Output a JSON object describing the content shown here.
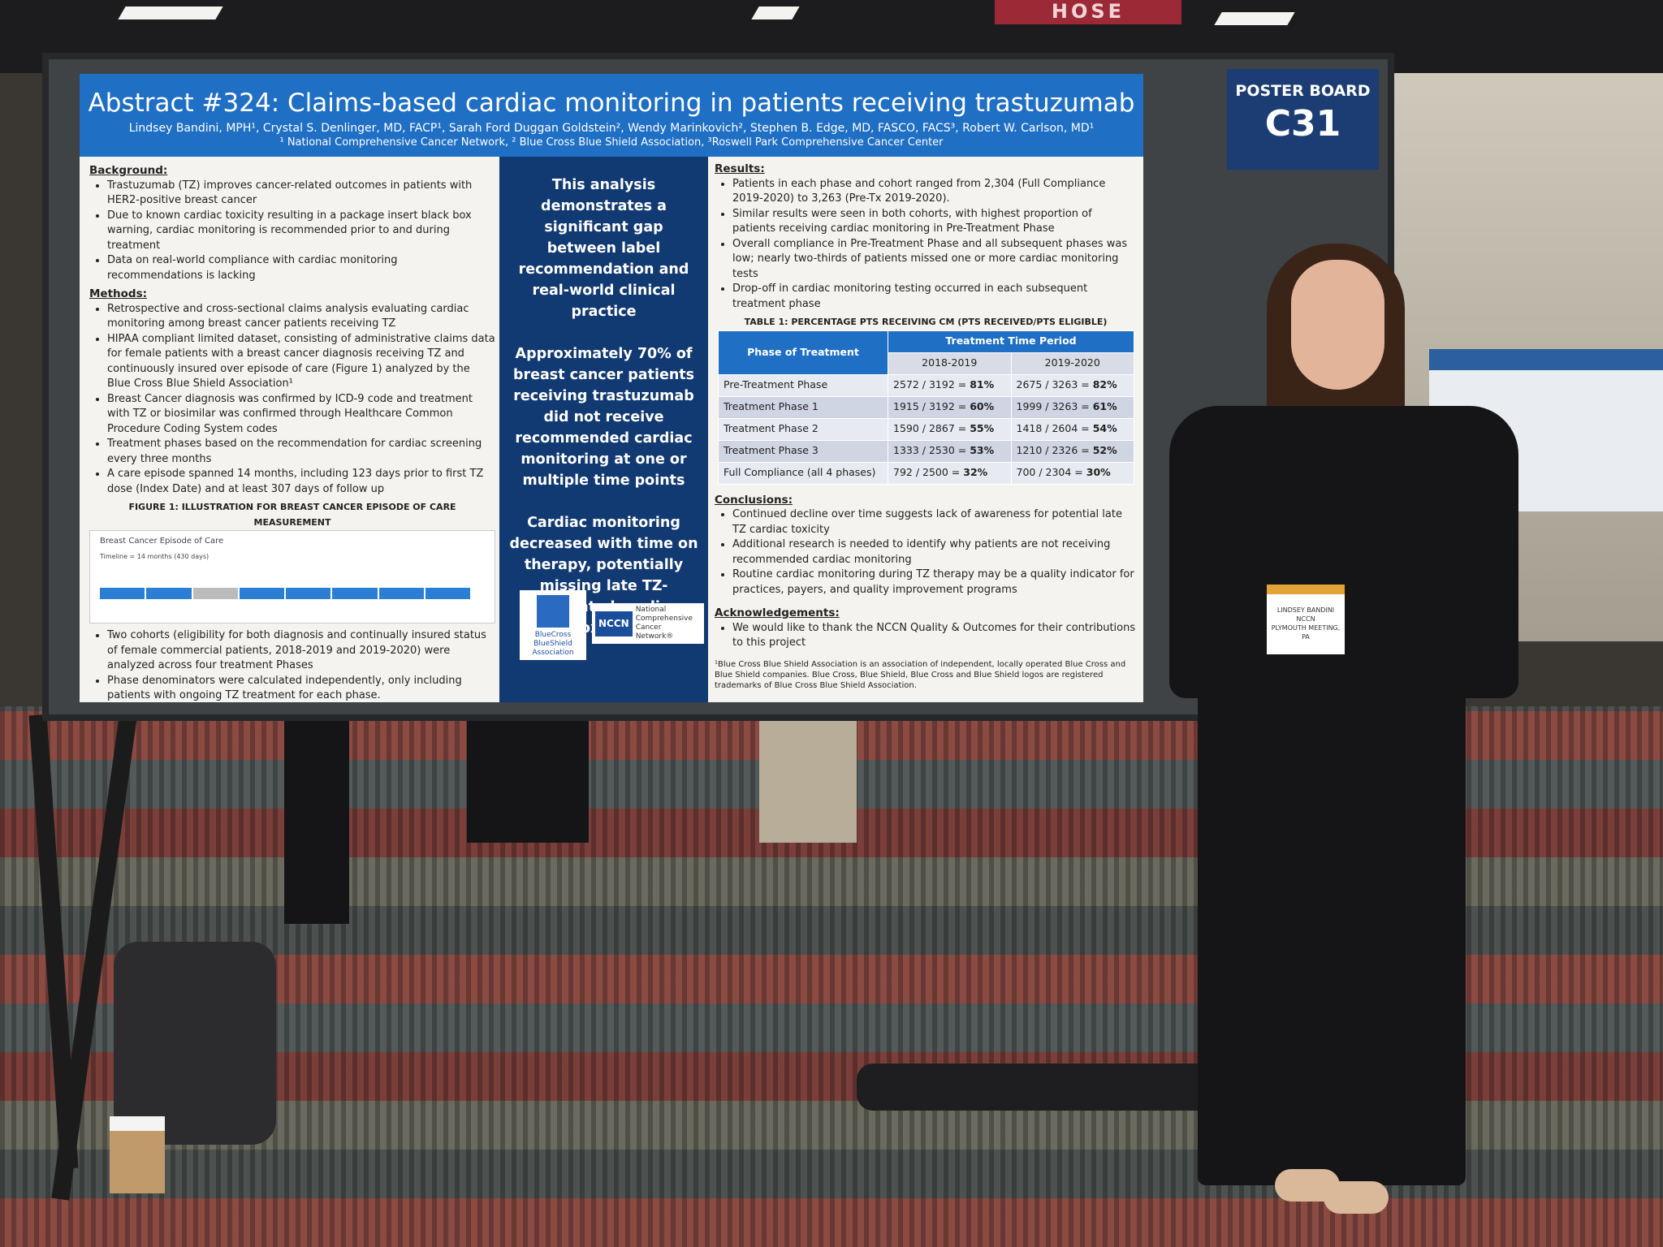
{
  "sign": "HOSE",
  "poster": {
    "title": "Abstract #324: Claims-based cardiac monitoring in patients receiving trastuzumab",
    "authors": "Lindsey Bandini, MPH¹, Crystal S. Denlinger, MD, FACP¹, Sarah Ford Duggan Goldstein², Wendy Marinkovich², Stephen B. Edge, MD, FASCO, FACS³, Robert W. Carlson, MD¹",
    "affiliations": "¹ National Comprehensive Cancer Network, ² Blue Cross Blue Shield Association, ³Roswell Park Comprehensive Cancer Center",
    "background": {
      "heading": "Background:",
      "bullets": [
        "Trastuzumab (TZ) improves cancer-related outcomes in patients with HER2-positive breast cancer",
        "Due to known cardiac toxicity resulting in a package insert black box warning, cardiac monitoring is recommended prior to and during treatment",
        "Data on real-world compliance with cardiac monitoring recommendations is lacking"
      ]
    },
    "methods": {
      "heading": "Methods:",
      "bullets": [
        "Retrospective and cross-sectional claims analysis evaluating cardiac monitoring among breast cancer patients receiving TZ",
        "HIPAA compliant limited dataset, consisting of administrative claims data for female patients with a breast cancer diagnosis receiving TZ and continuously insured over episode of care (Figure 1) analyzed by the Blue Cross Blue Shield Association¹",
        "Breast Cancer diagnosis was confirmed by ICD-9 code and treatment with TZ or biosimilar was confirmed through Healthcare Common Procedure Coding System codes",
        "Treatment phases based on the recommendation for cardiac screening every three months",
        "A care episode spanned 14 months, including 123 days prior to first TZ dose (Index Date) and at least 307 days of follow up"
      ],
      "more_bullets": [
        "Two cohorts (eligibility for both diagnosis and continually insured status of female commercial patients, 2018-2019 and 2019-2020) were analyzed across four treatment Phases",
        "Phase denominators were calculated independently, only including patients with ongoing TZ treatment for each phase."
      ]
    },
    "figure": {
      "caption": "FIGURE 1: ILLUSTRATION FOR BREAST CANCER EPISODE OF CARE MEASUREMENT",
      "title": "Breast Cancer Episode of Care",
      "subtitle": "Timeline = 14 months (430 days)"
    },
    "key_messages": [
      "This analysis demonstrates a significant gap between label recommendation  and real-world clinical practice",
      "Approximately 70% of breast cancer patients receiving trastuzumab did not receive recommended cardiac monitoring at one or multiple time points",
      "Cardiac monitoring decreased with time on therapy, potentially missing late TZ-associated cardiac toxicity"
    ],
    "logos": {
      "bcbs": "BlueCross BlueShield Association",
      "nccn": "NCCN",
      "nccn_name": "National Comprehensive Cancer Network®"
    },
    "results": {
      "heading": "Results:",
      "bullets": [
        "Patients in each phase and cohort ranged from 2,304 (Full Compliance 2019-2020) to 3,263 (Pre-Tx 2019-2020).",
        "Similar results were seen in both cohorts, with highest proportion of patients receiving cardiac monitoring in Pre-Treatment Phase",
        "Overall compliance in Pre-Treatment Phase and all subsequent phases was low; nearly two-thirds of patients missed one or more cardiac monitoring tests",
        "Drop-off in cardiac monitoring testing occurred in each subsequent treatment phase"
      ]
    },
    "table": {
      "caption": "TABLE 1: PERCENTAGE PTS RECEIVING CM (PTS RECEIVED/PTS ELIGIBLE)",
      "phase_header": "Phase of Treatment",
      "period_header": "Treatment Time Period",
      "periods": [
        "2018-2019",
        "2019-2020"
      ],
      "rows": [
        [
          "Pre-Treatment Phase",
          [
            "2572 / 3192 = ",
            "81%"
          ],
          [
            "2675 / 3263 = ",
            "82%"
          ]
        ],
        [
          "Treatment Phase 1",
          [
            "1915 / 3192 = ",
            "60%"
          ],
          [
            "1999 / 3263 = ",
            "61%"
          ]
        ],
        [
          "Treatment Phase 2",
          [
            "1590 / 2867 = ",
            "55%"
          ],
          [
            "1418 / 2604 = ",
            "54%"
          ]
        ],
        [
          "Treatment Phase 3",
          [
            "1333 / 2530 = ",
            "53%"
          ],
          [
            "1210 / 2326 = ",
            "52%"
          ]
        ],
        [
          "Full Compliance (all 4 phases)",
          [
            "792 / 2500 = ",
            "32%"
          ],
          [
            "700 / 2304 = ",
            "30%"
          ]
        ]
      ]
    },
    "conclusions": {
      "heading": "Conclusions:",
      "bullets": [
        "Continued decline over time suggests lack of awareness for potential late TZ cardiac toxicity",
        "Additional research is needed to identify why patients are not receiving recommended cardiac monitoring",
        "Routine cardiac monitoring during TZ therapy may be a quality indicator for practices, payers, and quality improvement programs"
      ]
    },
    "acknowledgements": {
      "heading": "Acknowledgements:",
      "bullets": [
        "We would like to thank the NCCN Quality & Outcomes for their contributions to this project"
      ]
    },
    "footnote": "¹Blue Cross Blue Shield Association is an association of independent, locally operated Blue Cross and Blue Shield companies. Blue Cross, Blue Shield, Blue Cross and Blue Shield logos are registered trademarks of Blue Cross Blue Shield Association."
  },
  "board": {
    "label": "POSTER BOARD",
    "number": "C31"
  },
  "badge": {
    "name": "LINDSEY BANDINI",
    "org": "NCCN",
    "location": "PLYMOUTH MEETING, PA"
  }
}
